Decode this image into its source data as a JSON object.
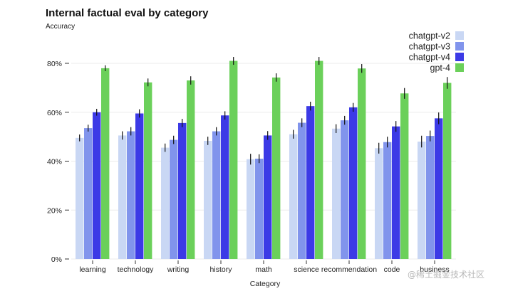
{
  "chart_data": {
    "type": "bar",
    "title": "Internal factual eval by category",
    "ylabel": "Accuracy",
    "xlabel": "Category",
    "ylim": [
      0,
      0.9
    ],
    "yticks": [
      0,
      0.2,
      0.4,
      0.6,
      0.8
    ],
    "ytick_labels": [
      "0%",
      "20%",
      "40%",
      "60%",
      "80%"
    ],
    "grid": true,
    "legend_position": "top-right",
    "categories": [
      "learning",
      "technology",
      "writing",
      "history",
      "math",
      "science",
      "recommendation",
      "code",
      "business"
    ],
    "series": [
      {
        "name": "chatgpt-v2",
        "color": "#c9d7f4",
        "values": [
          0.495,
          0.505,
          0.455,
          0.483,
          0.408,
          0.51,
          0.533,
          0.453,
          0.48
        ],
        "errors": [
          0.014,
          0.017,
          0.017,
          0.017,
          0.022,
          0.018,
          0.018,
          0.022,
          0.024
        ]
      },
      {
        "name": "chatgpt-v3",
        "color": "#8194ec",
        "values": [
          0.535,
          0.522,
          0.487,
          0.522,
          0.41,
          0.557,
          0.567,
          0.478,
          0.503
        ],
        "errors": [
          0.014,
          0.017,
          0.017,
          0.017,
          0.018,
          0.018,
          0.018,
          0.022,
          0.022
        ]
      },
      {
        "name": "chatgpt-v4",
        "color": "#3c3ae6",
        "values": [
          0.6,
          0.595,
          0.556,
          0.587,
          0.505,
          0.625,
          0.62,
          0.542,
          0.575
        ],
        "errors": [
          0.014,
          0.017,
          0.017,
          0.017,
          0.018,
          0.018,
          0.018,
          0.022,
          0.024
        ]
      },
      {
        "name": "gpt-4",
        "color": "#6bd05a",
        "values": [
          0.78,
          0.722,
          0.73,
          0.81,
          0.742,
          0.81,
          0.779,
          0.677,
          0.72
        ],
        "errors": [
          0.012,
          0.016,
          0.017,
          0.016,
          0.017,
          0.016,
          0.018,
          0.022,
          0.024
        ]
      }
    ]
  },
  "watermark": "@稀土掘金技术社区"
}
